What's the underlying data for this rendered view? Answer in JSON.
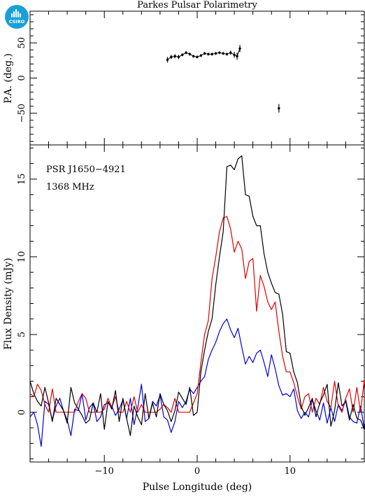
{
  "title": "Parkes Pulsar Polarimetry",
  "logo": {
    "text": "CSIRO",
    "color": "#1aa0d8"
  },
  "chart_data": [
    {
      "type": "scatter",
      "panel": "top",
      "ylabel": "P.A. (deg.)",
      "xlim": [
        -18,
        18
      ],
      "ylim": [
        -95,
        95
      ],
      "yticks": [
        "50",
        "0",
        "−50"
      ],
      "ytick_values": [
        50,
        0,
        -50
      ],
      "x": [
        -3.2,
        -2.8,
        -2.4,
        -2.0,
        -1.6,
        -1.2,
        -0.8,
        -0.4,
        0.0,
        0.4,
        0.8,
        1.2,
        1.6,
        2.0,
        2.4,
        2.8,
        3.2,
        3.6,
        4.0,
        4.3,
        4.6,
        8.8
      ],
      "y": [
        26,
        30,
        31,
        30,
        33,
        36,
        34,
        31,
        30,
        32,
        35,
        34,
        34,
        35,
        36,
        35,
        34,
        36,
        33,
        31,
        42,
        -43
      ],
      "yerr": [
        4,
        3,
        3,
        3,
        2,
        2,
        2,
        2,
        2,
        2,
        2,
        2,
        2,
        2,
        2,
        2,
        2,
        3,
        4,
        5,
        5,
        6
      ],
      "connected_points": 21,
      "color": "#000000"
    },
    {
      "type": "line",
      "panel": "bottom",
      "xlabel": "Pulse Longitude (deg)",
      "ylabel": "Flux Density (mJy)",
      "xlim": [
        -18,
        18
      ],
      "ylim": [
        -3.2,
        17.2
      ],
      "xticks": [
        "−10",
        "0",
        "10"
      ],
      "xtick_values": [
        -10,
        0,
        10
      ],
      "yticks": [
        "15",
        "10",
        "5",
        "0"
      ],
      "ytick_values": [
        15,
        10,
        5,
        0
      ],
      "annotations": [
        "PSR J1650−4921",
        "1368 MHz"
      ],
      "x_start": -18,
      "x_step": 0.4,
      "series": [
        {
          "color": "#000000",
          "values": [
            2.0,
            1.2,
            0.7,
            0.4,
            1.6,
            0.6,
            -0.6,
            0.9,
            0.5,
            0.1,
            -0.7,
            1.6,
            0.6,
            0.2,
            -0.2,
            -0.7,
            -0.5,
            0.6,
            0.0,
            1.2,
            -1.1,
            0.7,
            0.2,
            1.4,
            -0.6,
            0.9,
            -0.4,
            -1.5,
            0.4,
            -0.3,
            -0.8,
            1.2,
            -0.4,
            0.6,
            -0.3,
            1.2,
            0.5,
            0.1,
            -0.6,
            0.1,
            1.3,
            0.9,
            0.5,
            1.6,
            -0.2,
            0.0,
            2.6,
            4.0,
            5.2,
            6.0,
            8.2,
            10.0,
            11.6,
            15.8,
            15.9,
            15.6,
            16.3,
            16.5,
            14.0,
            13.9,
            12.6,
            12.0,
            12.0,
            10.2,
            9.0,
            8.3,
            7.7,
            7.6,
            6.3,
            3.9,
            3.8,
            2.6,
            1.9,
            0.4,
            -0.2,
            0.3,
            0.9,
            -0.3,
            0.6,
            1.1,
            1.8,
            -0.9,
            0.1,
            1.9,
            0.4,
            0.7,
            -0.5,
            0.5,
            -0.4,
            -0.5,
            -1.1,
            -0.3,
            0.6,
            -1.0,
            -0.5,
            1.0
          ]
        },
        {
          "color": "#e00000",
          "values": [
            1.2,
            1.0,
            1.8,
            1.4,
            0.5,
            0.0,
            1.5,
            0.0,
            0.0,
            0.0,
            0.0,
            0.0,
            0.0,
            0.7,
            1.2,
            0.9,
            0.0,
            0.0,
            0.0,
            0.0,
            0.2,
            0.9,
            0.3,
            1.0,
            0.0,
            0.0,
            0.7,
            0.0,
            1.0,
            0.0,
            0.5,
            0.0,
            0.0,
            0.0,
            0.0,
            0.2,
            0.5,
            0.3,
            0.0,
            0.9,
            0.0,
            0.0,
            0.0,
            0.0,
            0.6,
            1.2,
            3.2,
            5.0,
            5.9,
            8.6,
            10.0,
            11.6,
            12.5,
            12.6,
            11.8,
            10.3,
            11.0,
            10.5,
            8.6,
            9.7,
            9.9,
            6.5,
            8.8,
            8.1,
            7.1,
            6.6,
            7.1,
            5.2,
            3.6,
            2.6,
            2.6,
            1.9,
            1.0,
            0.2,
            1.0,
            1.2,
            0.0,
            0.9,
            0.5,
            1.6,
            0.7,
            0.3,
            2.0,
            0.4,
            0.0,
            0.9,
            1.5,
            0.0,
            1.6,
            0.0,
            2.1,
            0.0,
            1.0,
            0.0,
            0.9,
            1.5
          ]
        },
        {
          "color": "#0000e0",
          "values": [
            -0.3,
            0.0,
            -0.8,
            -2.2,
            0.7,
            0.5,
            -0.5,
            0.4,
            0.9,
            0.1,
            -0.5,
            -1.5,
            0.2,
            0.1,
            1.2,
            -0.5,
            0.3,
            0.6,
            -0.6,
            -0.3,
            0.5,
            0.6,
            0.4,
            -0.2,
            0.2,
            0.8,
            -0.4,
            0.9,
            -0.8,
            0.3,
            1.8,
            -0.6,
            -0.4,
            0.7,
            0.4,
            1.1,
            -0.3,
            -0.5,
            -1.3,
            -0.6,
            0.7,
            0.3,
            0.7,
            1.5,
            1.2,
            1.6,
            2.0,
            2.3,
            3.4,
            4.0,
            4.5,
            5.2,
            5.7,
            6.0,
            5.3,
            4.8,
            5.4,
            4.2,
            3.1,
            3.6,
            3.2,
            3.8,
            4.0,
            3.2,
            2.3,
            3.7,
            2.8,
            1.7,
            1.1,
            1.2,
            1.0,
            1.5,
            0.1,
            -0.4,
            0.0,
            -0.3,
            0.8,
            0.1,
            -0.5,
            0.6,
            -0.7,
            0.3,
            -0.6,
            0.5,
            0.1,
            0.8,
            -0.3,
            -0.6,
            -0.7,
            0.4,
            -1.1,
            0.2,
            -1.6,
            0.2,
            1.0,
            -0.8
          ]
        }
      ]
    }
  ]
}
